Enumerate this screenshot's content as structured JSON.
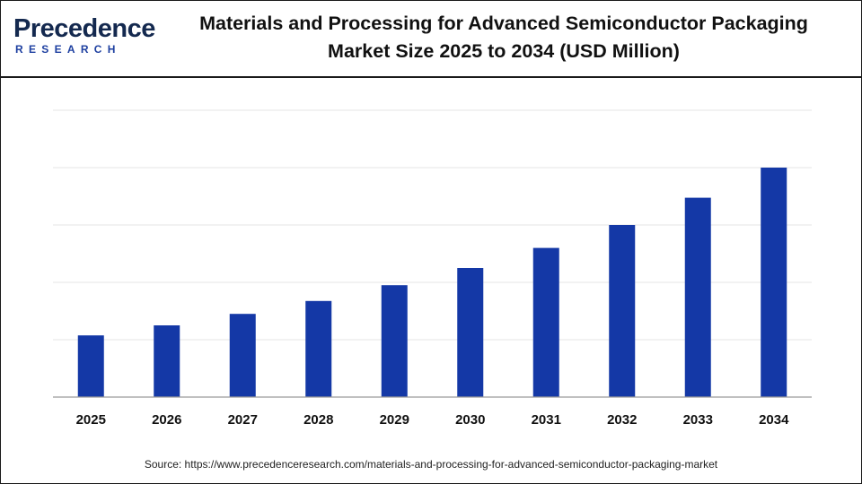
{
  "brand": {
    "name": "Precedence",
    "sub": "RESEARCH"
  },
  "chart_data": {
    "type": "bar",
    "title_line1": "Materials and Processing for Advanced Semiconductor Packaging",
    "title_line2": "Market Size 2025 to 2034 (USD Million)",
    "categories": [
      "2025",
      "2026",
      "2027",
      "2028",
      "2029",
      "2030",
      "2031",
      "2032",
      "2033",
      "2034"
    ],
    "values": [
      215,
      250,
      290,
      335,
      390,
      450,
      520,
      600,
      695,
      800
    ],
    "ylim": [
      0,
      1000
    ],
    "gridlines": [
      200,
      400,
      600,
      800,
      1000
    ],
    "y_tick_labels_shown": false,
    "grid": true,
    "bar_color": "#1438a6",
    "grid_color": "#e6e6e6",
    "axis_color": "#9a9a9a"
  },
  "source": "Source: https://www.precedenceresearch.com/materials-and-processing-for-advanced-semiconductor-packaging-market"
}
